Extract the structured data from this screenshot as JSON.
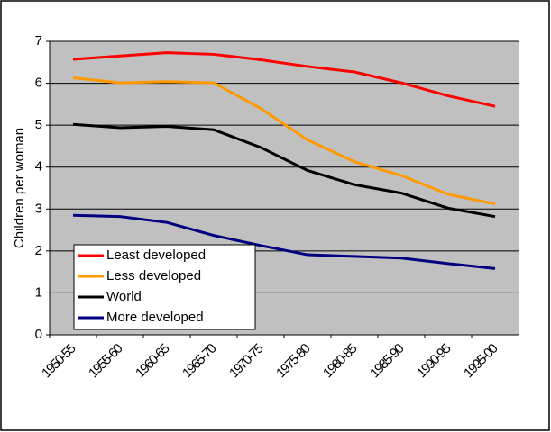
{
  "chart_data": {
    "type": "line",
    "y_label": "Children per woman",
    "categories": [
      "1950-55",
      "1955-60",
      "1960-65",
      "1965-70",
      "1970-75",
      "1975-80",
      "1980-85",
      "1985-90",
      "1990-95",
      "1995-00"
    ],
    "series": [
      {
        "name": "Least developed",
        "color": "#ff0000",
        "values": [
          6.57,
          6.65,
          6.73,
          6.69,
          6.56,
          6.4,
          6.27,
          6.01,
          5.7,
          5.45
        ]
      },
      {
        "name": "Less developed",
        "color": "#ff9900",
        "values": [
          6.13,
          6.01,
          6.04,
          6.01,
          5.4,
          4.65,
          4.13,
          3.8,
          3.35,
          3.12
        ]
      },
      {
        "name": "World",
        "color": "#000000",
        "values": [
          5.02,
          4.94,
          4.97,
          4.89,
          4.47,
          3.92,
          3.58,
          3.38,
          3.02,
          2.82
        ]
      },
      {
        "name": "More developed",
        "color": "#000080",
        "values": [
          2.85,
          2.82,
          2.68,
          2.37,
          2.13,
          1.91,
          1.87,
          1.83,
          1.7,
          1.58
        ]
      }
    ],
    "ylim": [
      0,
      7
    ],
    "yticks": [
      0,
      1,
      2,
      3,
      4,
      5,
      6,
      7
    ],
    "grid": true,
    "legend": "lower-left"
  }
}
